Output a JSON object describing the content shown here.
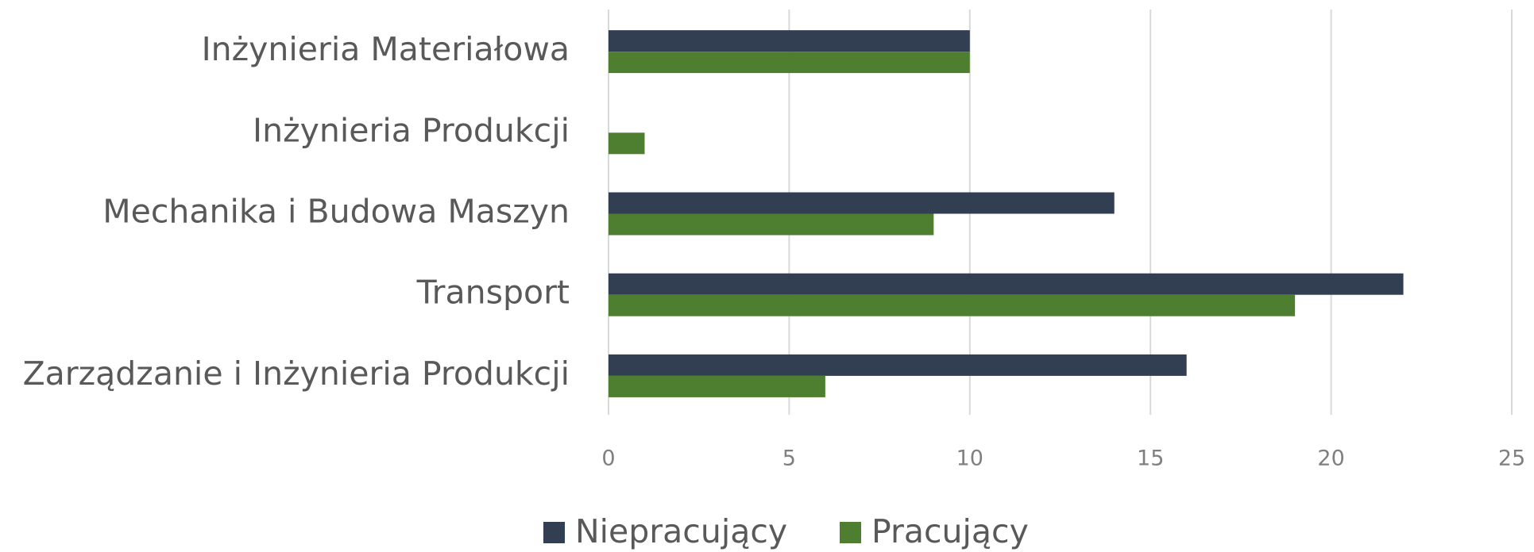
{
  "chart_data": {
    "type": "barh",
    "categories": [
      "Inżynieria Materiałowa",
      "Inżynieria Produkcji",
      "Mechanika i Budowa Maszyn",
      "Transport",
      "Zarządzanie i Inżynieria Produkcji"
    ],
    "series": [
      {
        "name": "Niepracujący",
        "color": "#323e51",
        "values": [
          10,
          0,
          14,
          22,
          16
        ]
      },
      {
        "name": "Pracujący",
        "color": "#4e7f31",
        "values": [
          10,
          1,
          9,
          19,
          6
        ]
      }
    ],
    "xlim": [
      0,
      25
    ],
    "xticks": [
      0,
      5,
      10,
      15,
      20,
      25
    ],
    "grid": true,
    "legend": "bottom"
  }
}
